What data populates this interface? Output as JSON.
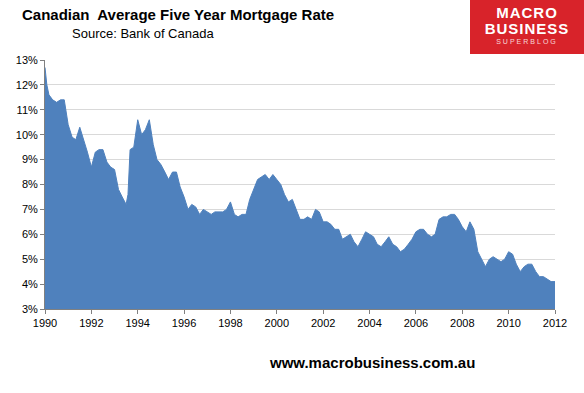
{
  "chart_data": {
    "type": "area",
    "title": "Canadian  Average Five Year Mortgage Rate",
    "subtitle": "Source: Bank of Canada",
    "logo": {
      "lines": [
        "MACRO",
        "BUSINESS"
      ],
      "tag": "SUPERBLOG"
    },
    "footer": "www.macrobusiness.com.au",
    "color": "#4f81bd",
    "grid": true,
    "x": [
      1990.0,
      1990.08,
      1990.17,
      1990.33,
      1990.5,
      1990.67,
      1990.83,
      1991.0,
      1991.17,
      1991.33,
      1991.5,
      1991.67,
      1991.83,
      1992.0,
      1992.17,
      1992.33,
      1992.5,
      1992.67,
      1992.83,
      1993.0,
      1993.17,
      1993.33,
      1993.5,
      1993.58,
      1993.67,
      1993.83,
      1994.0,
      1994.17,
      1994.33,
      1994.5,
      1994.67,
      1994.83,
      1995.0,
      1995.17,
      1995.33,
      1995.5,
      1995.67,
      1995.83,
      1996.0,
      1996.17,
      1996.33,
      1996.5,
      1996.67,
      1996.83,
      1997.0,
      1997.17,
      1997.33,
      1997.5,
      1997.67,
      1997.83,
      1998.0,
      1998.17,
      1998.33,
      1998.5,
      1998.67,
      1998.83,
      1999.0,
      1999.17,
      1999.33,
      1999.5,
      1999.67,
      1999.83,
      2000.0,
      2000.17,
      2000.33,
      2000.5,
      2000.67,
      2000.83,
      2001.0,
      2001.17,
      2001.33,
      2001.5,
      2001.67,
      2001.83,
      2002.0,
      2002.17,
      2002.33,
      2002.5,
      2002.67,
      2002.83,
      2003.0,
      2003.17,
      2003.33,
      2003.5,
      2003.67,
      2003.83,
      2004.0,
      2004.17,
      2004.33,
      2004.5,
      2004.67,
      2004.83,
      2005.0,
      2005.17,
      2005.33,
      2005.5,
      2005.67,
      2005.83,
      2006.0,
      2006.17,
      2006.33,
      2006.5,
      2006.67,
      2006.83,
      2007.0,
      2007.17,
      2007.33,
      2007.5,
      2007.67,
      2007.83,
      2008.0,
      2008.17,
      2008.33,
      2008.5,
      2008.67,
      2008.83,
      2009.0,
      2009.17,
      2009.33,
      2009.5,
      2009.67,
      2009.83,
      2010.0,
      2010.17,
      2010.33,
      2010.5,
      2010.67,
      2010.83,
      2011.0,
      2011.17,
      2011.33,
      2011.5,
      2011.67,
      2011.83,
      2012.0
    ],
    "values": [
      12.7,
      12.0,
      11.6,
      11.4,
      11.3,
      11.4,
      11.4,
      10.4,
      9.9,
      9.8,
      10.3,
      9.8,
      9.3,
      8.7,
      9.3,
      9.4,
      9.4,
      8.9,
      8.7,
      8.6,
      7.8,
      7.5,
      7.2,
      7.6,
      9.4,
      9.5,
      10.6,
      10.0,
      10.2,
      10.6,
      9.6,
      9.0,
      8.8,
      8.5,
      8.2,
      8.5,
      8.5,
      7.9,
      7.5,
      7.0,
      7.2,
      7.1,
      6.8,
      7.0,
      6.9,
      6.8,
      6.9,
      6.9,
      6.9,
      7.0,
      7.3,
      6.8,
      6.7,
      6.8,
      6.8,
      7.4,
      7.8,
      8.2,
      8.3,
      8.4,
      8.2,
      8.4,
      8.2,
      8.0,
      7.6,
      7.3,
      7.4,
      7.0,
      6.6,
      6.6,
      6.7,
      6.6,
      7.0,
      6.9,
      6.5,
      6.5,
      6.4,
      6.2,
      6.2,
      5.8,
      5.9,
      6.0,
      5.7,
      5.5,
      5.8,
      6.1,
      6.0,
      5.9,
      5.6,
      5.5,
      5.7,
      5.9,
      5.6,
      5.5,
      5.3,
      5.4,
      5.6,
      5.8,
      6.1,
      6.2,
      6.2,
      6.0,
      5.9,
      6.0,
      6.6,
      6.7,
      6.7,
      6.8,
      6.8,
      6.6,
      6.3,
      6.1,
      6.5,
      6.2,
      5.3,
      5.0,
      4.7,
      5.0,
      5.1,
      5.0,
      4.9,
      5.0,
      5.3,
      5.2,
      4.8,
      4.5,
      4.7,
      4.8,
      4.8,
      4.5,
      4.3,
      4.3,
      4.2,
      4.1,
      4.1
    ],
    "xlim": [
      1990,
      2012
    ],
    "xticks": [
      1990,
      1992,
      1994,
      1996,
      1998,
      2000,
      2002,
      2004,
      2006,
      2008,
      2010,
      2012
    ],
    "ylim": [
      3,
      13
    ],
    "yticks": [
      {
        "value": 3,
        "label": "3%"
      },
      {
        "value": 4,
        "label": "4%"
      },
      {
        "value": 5,
        "label": "5%"
      },
      {
        "value": 6,
        "label": "6%"
      },
      {
        "value": 7,
        "label": "7%"
      },
      {
        "value": 8,
        "label": "8%"
      },
      {
        "value": 9,
        "label": "9%"
      },
      {
        "value": 10,
        "label": "10%"
      },
      {
        "value": 11,
        "label": "11%"
      },
      {
        "value": 12,
        "label": "12%"
      },
      {
        "value": 13,
        "label": "13%"
      }
    ]
  }
}
